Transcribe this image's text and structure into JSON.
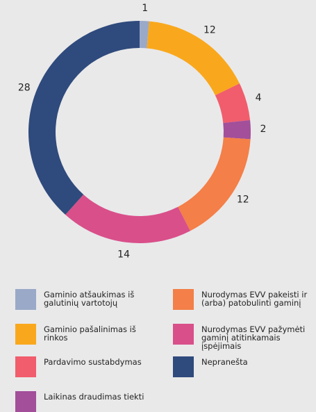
{
  "chart_data": {
    "type": "pie",
    "donut": true,
    "categories": [
      "Gaminio atšaukimas iš galutinių vartotojų",
      "Gaminio pašalinimas iš rinkos",
      "Pardavimo sustabdymas",
      "Laikinas draudimas tiekti",
      "Nurodymas EVV pakeisti ir (arba) patobulinti gaminį",
      "Nurodymas EVV pažymėti gaminį atitinkamais įspėjimais",
      "Nepranešta"
    ],
    "values": [
      1,
      12,
      4,
      2,
      12,
      14,
      28
    ],
    "colors": [
      "#9aa9c8",
      "#f9a81d",
      "#f15d6c",
      "#a34f9a",
      "#f47f48",
      "#d94f8a",
      "#2f4a7c"
    ]
  }
}
